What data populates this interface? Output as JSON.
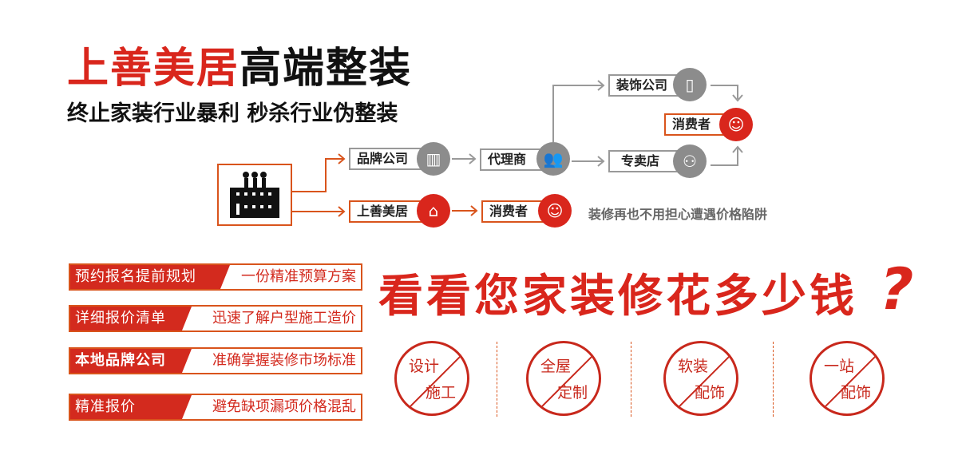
{
  "header": {
    "title_red": "上善美居",
    "title_black": "高端整装",
    "subtitle": "终止家装行业暴利  秒杀行业伪整装"
  },
  "flow": {
    "factory_icon": "factory-icon",
    "brand_company": "品牌公司",
    "agent": "代理商",
    "decoration_company": "装饰公司",
    "consumer_top": "消费者",
    "store": "专卖店",
    "shangshan": "上善美居",
    "consumer_bottom": "消费者",
    "note": "装修再也不用担心遭遇价格陷阱"
  },
  "features": [
    {
      "label": "预约报名提前规划",
      "desc": "一份精准预算方案"
    },
    {
      "label": "详细报价清单",
      "desc": "迅速了解户型施工造价"
    },
    {
      "label": "本地品牌公司",
      "desc": "准确掌握装修市场标准"
    },
    {
      "label": "精准报价",
      "desc": "避免缺项漏项价格混乱"
    }
  ],
  "headline": "看看您家装修花多少钱",
  "headline_mark": "?",
  "stamps": [
    {
      "top": "设计",
      "bottom": "施工"
    },
    {
      "top": "全屋",
      "bottom": "定制"
    },
    {
      "top": "软装",
      "bottom": "配饰"
    },
    {
      "top": "一站",
      "bottom": "配饰"
    }
  ],
  "colors": {
    "brand_red": "#d9261c",
    "gray": "#8c8c8c",
    "line_orange": "#d9541c"
  }
}
